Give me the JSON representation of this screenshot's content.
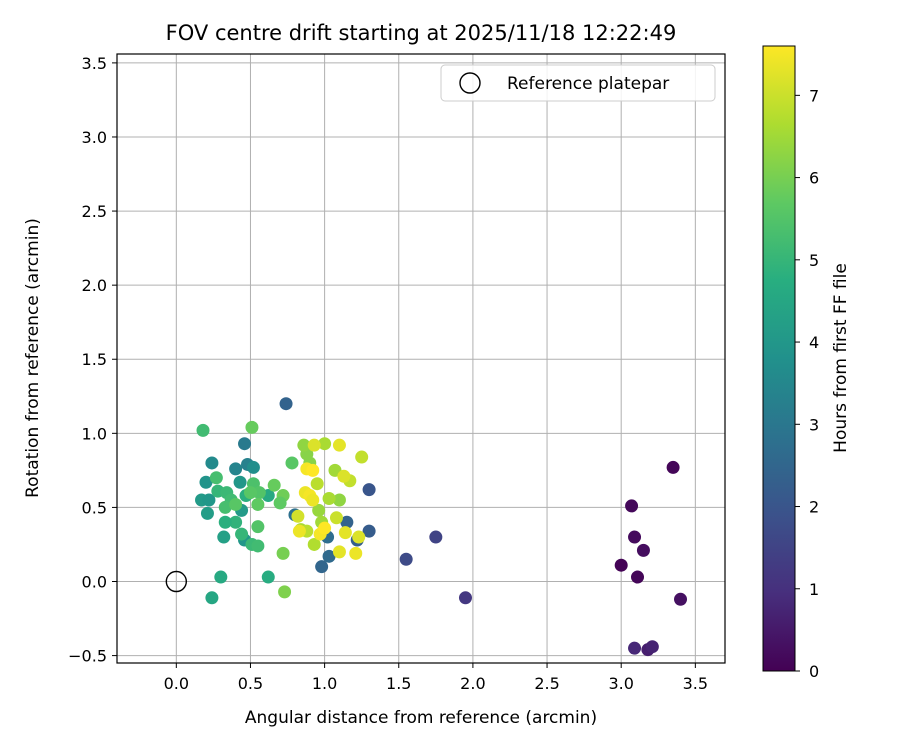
{
  "chart_data": {
    "type": "scatter",
    "title": "FOV centre drift starting at 2025/11/18 12:22:49",
    "xlabel": "Angular distance from reference (arcmin)",
    "ylabel": "Rotation from reference (arcmin)",
    "xlim": [
      -0.4,
      3.7
    ],
    "ylim": [
      -0.55,
      3.56
    ],
    "xticks": [
      0.0,
      0.5,
      1.0,
      1.5,
      2.0,
      2.5,
      3.0,
      3.5
    ],
    "xtick_labels": [
      "0.0",
      "0.5",
      "1.0",
      "1.5",
      "2.0",
      "2.5",
      "3.0",
      "3.5"
    ],
    "yticks": [
      -0.5,
      0.0,
      0.5,
      1.0,
      1.5,
      2.0,
      2.5,
      3.0,
      3.5
    ],
    "ytick_labels": [
      "−0.5",
      "0.0",
      "0.5",
      "1.0",
      "1.5",
      "2.0",
      "2.5",
      "3.0",
      "3.5"
    ],
    "grid": true,
    "legend": {
      "position": "top-right",
      "entries": [
        "Reference platepar"
      ]
    },
    "reference_point": {
      "x": 0.0,
      "y": 0.0,
      "label": "Reference platepar"
    },
    "colorbar": {
      "label": "Hours from first FF file",
      "range": [
        0,
        7.6
      ],
      "ticks": [
        0,
        1,
        2,
        3,
        4,
        5,
        6,
        7
      ],
      "tick_labels": [
        "0",
        "1",
        "2",
        "3",
        "4",
        "5",
        "6",
        "7"
      ],
      "colormap": "viridis"
    },
    "points": [
      {
        "x": 3.35,
        "y": 0.77,
        "t": 0.1
      },
      {
        "x": 3.07,
        "y": 0.51,
        "t": 0.15
      },
      {
        "x": 3.09,
        "y": 0.3,
        "t": 0.2
      },
      {
        "x": 3.15,
        "y": 0.21,
        "t": 0.25
      },
      {
        "x": 3.0,
        "y": 0.11,
        "t": 0.05
      },
      {
        "x": 3.11,
        "y": 0.03,
        "t": 0.1
      },
      {
        "x": 3.4,
        "y": -0.12,
        "t": 0.3
      },
      {
        "x": 3.09,
        "y": -0.45,
        "t": 0.8
      },
      {
        "x": 3.18,
        "y": -0.46,
        "t": 0.6
      },
      {
        "x": 3.21,
        "y": -0.44,
        "t": 0.7
      },
      {
        "x": 1.95,
        "y": -0.11,
        "t": 1.2
      },
      {
        "x": 1.75,
        "y": 0.3,
        "t": 1.5
      },
      {
        "x": 1.55,
        "y": 0.15,
        "t": 1.7
      },
      {
        "x": 1.3,
        "y": 0.62,
        "t": 2.0
      },
      {
        "x": 1.3,
        "y": 0.34,
        "t": 2.2
      },
      {
        "x": 1.15,
        "y": 0.4,
        "t": 2.4
      },
      {
        "x": 1.22,
        "y": 0.28,
        "t": 2.3
      },
      {
        "x": 0.98,
        "y": 0.1,
        "t": 2.5
      },
      {
        "x": 1.03,
        "y": 0.17,
        "t": 2.6
      },
      {
        "x": 1.02,
        "y": 0.3,
        "t": 2.7
      },
      {
        "x": 0.74,
        "y": 1.2,
        "t": 2.4
      },
      {
        "x": 0.8,
        "y": 0.45,
        "t": 2.8
      },
      {
        "x": 0.46,
        "y": 0.93,
        "t": 3.1
      },
      {
        "x": 0.48,
        "y": 0.79,
        "t": 3.3
      },
      {
        "x": 0.4,
        "y": 0.76,
        "t": 3.4
      },
      {
        "x": 0.24,
        "y": 0.8,
        "t": 3.6
      },
      {
        "x": 0.52,
        "y": 0.77,
        "t": 3.7
      },
      {
        "x": 0.2,
        "y": 0.67,
        "t": 3.9
      },
      {
        "x": 0.43,
        "y": 0.67,
        "t": 4.0
      },
      {
        "x": 0.17,
        "y": 0.55,
        "t": 4.1
      },
      {
        "x": 0.22,
        "y": 0.55,
        "t": 4.0
      },
      {
        "x": 0.21,
        "y": 0.46,
        "t": 4.2
      },
      {
        "x": 0.44,
        "y": 0.48,
        "t": 4.1
      },
      {
        "x": 0.32,
        "y": 0.3,
        "t": 4.3
      },
      {
        "x": 0.46,
        "y": 0.28,
        "t": 4.0
      },
      {
        "x": 0.24,
        "y": -0.11,
        "t": 4.5
      },
      {
        "x": 0.3,
        "y": 0.03,
        "t": 4.6
      },
      {
        "x": 0.62,
        "y": 0.03,
        "t": 4.7
      },
      {
        "x": 0.62,
        "y": 0.58,
        "t": 4.6
      },
      {
        "x": 0.47,
        "y": 0.58,
        "t": 4.8
      },
      {
        "x": 0.4,
        "y": 0.4,
        "t": 4.9
      },
      {
        "x": 0.33,
        "y": 0.4,
        "t": 4.8
      },
      {
        "x": 0.28,
        "y": 0.61,
        "t": 5.0
      },
      {
        "x": 0.34,
        "y": 0.6,
        "t": 5.1
      },
      {
        "x": 0.37,
        "y": 0.55,
        "t": 5.2
      },
      {
        "x": 0.33,
        "y": 0.5,
        "t": 5.3
      },
      {
        "x": 0.44,
        "y": 0.32,
        "t": 5.0
      },
      {
        "x": 0.51,
        "y": 0.25,
        "t": 5.1
      },
      {
        "x": 0.55,
        "y": 0.24,
        "t": 5.2
      },
      {
        "x": 0.27,
        "y": 0.7,
        "t": 5.3
      },
      {
        "x": 0.18,
        "y": 1.02,
        "t": 5.2
      },
      {
        "x": 0.52,
        "y": 0.66,
        "t": 5.4
      },
      {
        "x": 0.56,
        "y": 0.6,
        "t": 5.5
      },
      {
        "x": 0.5,
        "y": 0.6,
        "t": 5.6
      },
      {
        "x": 0.55,
        "y": 0.52,
        "t": 5.7
      },
      {
        "x": 0.4,
        "y": 0.52,
        "t": 5.6
      },
      {
        "x": 0.55,
        "y": 0.37,
        "t": 5.5
      },
      {
        "x": 0.66,
        "y": 0.65,
        "t": 5.8
      },
      {
        "x": 0.72,
        "y": 0.58,
        "t": 5.9
      },
      {
        "x": 0.7,
        "y": 0.53,
        "t": 5.7
      },
      {
        "x": 0.51,
        "y": 1.04,
        "t": 5.8
      },
      {
        "x": 0.78,
        "y": 0.8,
        "t": 5.6
      },
      {
        "x": 0.72,
        "y": 0.19,
        "t": 6.0
      },
      {
        "x": 0.73,
        "y": -0.07,
        "t": 6.1
      },
      {
        "x": 0.88,
        "y": 0.86,
        "t": 6.2
      },
      {
        "x": 0.86,
        "y": 0.92,
        "t": 6.3
      },
      {
        "x": 0.9,
        "y": 0.8,
        "t": 6.2
      },
      {
        "x": 0.96,
        "y": 0.48,
        "t": 6.4
      },
      {
        "x": 0.98,
        "y": 0.4,
        "t": 6.5
      },
      {
        "x": 1.1,
        "y": 0.55,
        "t": 6.3
      },
      {
        "x": 1.07,
        "y": 0.75,
        "t": 6.5
      },
      {
        "x": 1.03,
        "y": 0.56,
        "t": 6.6
      },
      {
        "x": 1.0,
        "y": 0.93,
        "t": 6.6
      },
      {
        "x": 0.93,
        "y": 0.25,
        "t": 6.7
      },
      {
        "x": 0.84,
        "y": 0.35,
        "t": 6.6
      },
      {
        "x": 0.88,
        "y": 0.34,
        "t": 6.8
      },
      {
        "x": 0.95,
        "y": 0.66,
        "t": 6.8
      },
      {
        "x": 1.17,
        "y": 0.68,
        "t": 6.9
      },
      {
        "x": 1.25,
        "y": 0.84,
        "t": 6.9
      },
      {
        "x": 1.08,
        "y": 0.43,
        "t": 7.0
      },
      {
        "x": 0.82,
        "y": 0.44,
        "t": 7.1
      },
      {
        "x": 0.93,
        "y": 0.92,
        "t": 7.2
      },
      {
        "x": 1.1,
        "y": 0.92,
        "t": 7.3
      },
      {
        "x": 1.13,
        "y": 0.71,
        "t": 7.2
      },
      {
        "x": 0.87,
        "y": 0.6,
        "t": 7.4
      },
      {
        "x": 0.9,
        "y": 0.58,
        "t": 7.5
      },
      {
        "x": 0.92,
        "y": 0.55,
        "t": 7.4
      },
      {
        "x": 0.88,
        "y": 0.76,
        "t": 7.5
      },
      {
        "x": 0.92,
        "y": 0.75,
        "t": 7.6
      },
      {
        "x": 0.97,
        "y": 0.32,
        "t": 7.5
      },
      {
        "x": 1.0,
        "y": 0.36,
        "t": 7.6
      },
      {
        "x": 0.83,
        "y": 0.34,
        "t": 7.4
      },
      {
        "x": 1.1,
        "y": 0.2,
        "t": 7.3
      },
      {
        "x": 1.21,
        "y": 0.19,
        "t": 7.4
      },
      {
        "x": 1.23,
        "y": 0.3,
        "t": 7.2
      },
      {
        "x": 1.14,
        "y": 0.33,
        "t": 7.3
      }
    ]
  }
}
